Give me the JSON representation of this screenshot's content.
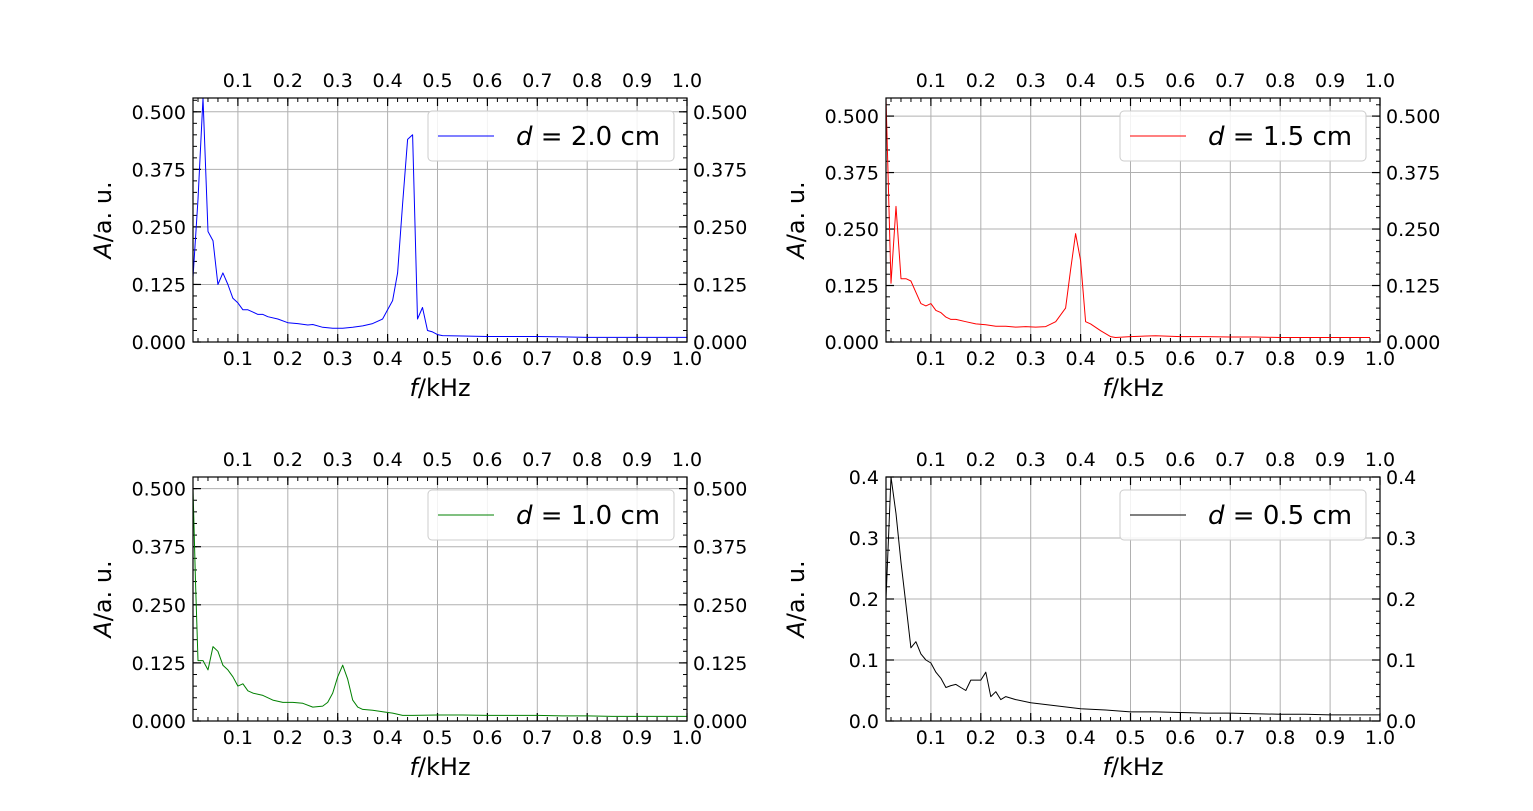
{
  "figure": {
    "background": "#ffffff"
  },
  "chart_data": [
    {
      "type": "line",
      "legend": {
        "label": "d = 2.0 cm",
        "math_var": "d",
        "math_rest": " = 2.0 cm",
        "placement": "top-right"
      },
      "xlabel": {
        "var": "f",
        "unit": "/kHz"
      },
      "ylabel": {
        "var": "A",
        "unit": "/a. u."
      },
      "xlim": [
        0.01,
        1.0
      ],
      "ylim": [
        0,
        0.53
      ],
      "xticks": [
        0.1,
        0.2,
        0.3,
        0.4,
        0.5,
        0.6,
        0.7,
        0.8,
        0.9,
        1.0
      ],
      "xtick_labels": [
        "0.1",
        "0.2",
        "0.3",
        "0.4",
        "0.5",
        "0.6",
        "0.7",
        "0.8",
        "0.9",
        "1.0"
      ],
      "yticks": [
        0,
        0.125,
        0.25,
        0.375,
        0.5
      ],
      "ytick_labels": [
        "0.000",
        "0.125",
        "0.250",
        "0.375",
        "0.500"
      ],
      "grid": true,
      "series": [
        {
          "color": "#0000ff",
          "x": [
            0.01,
            0.02,
            0.03,
            0.04,
            0.05,
            0.06,
            0.07,
            0.08,
            0.09,
            0.1,
            0.11,
            0.12,
            0.13,
            0.14,
            0.15,
            0.16,
            0.18,
            0.2,
            0.22,
            0.24,
            0.25,
            0.27,
            0.29,
            0.31,
            0.33,
            0.35,
            0.37,
            0.39,
            0.4,
            0.41,
            0.42,
            0.43,
            0.44,
            0.45,
            0.46,
            0.47,
            0.48,
            0.49,
            0.5,
            0.51,
            0.55,
            0.6,
            0.65,
            0.7,
            0.75,
            0.8,
            0.85,
            0.9,
            0.95,
            1.0
          ],
          "y": [
            0.14,
            0.31,
            0.53,
            0.24,
            0.22,
            0.125,
            0.15,
            0.125,
            0.095,
            0.085,
            0.07,
            0.07,
            0.065,
            0.06,
            0.06,
            0.055,
            0.05,
            0.042,
            0.04,
            0.037,
            0.038,
            0.032,
            0.03,
            0.03,
            0.032,
            0.035,
            0.04,
            0.05,
            0.07,
            0.09,
            0.15,
            0.3,
            0.44,
            0.45,
            0.05,
            0.075,
            0.025,
            0.022,
            0.016,
            0.014,
            0.013,
            0.012,
            0.012,
            0.012,
            0.011,
            0.01,
            0.01,
            0.01,
            0.01,
            0.01
          ]
        }
      ]
    },
    {
      "type": "line",
      "legend": {
        "label": "d = 1.5 cm",
        "math_var": "d",
        "math_rest": " = 1.5 cm",
        "placement": "top-right"
      },
      "xlabel": {
        "var": "f",
        "unit": "/kHz"
      },
      "ylabel": {
        "var": "A",
        "unit": "/a. u."
      },
      "xlim": [
        0.01,
        1.0
      ],
      "ylim": [
        0,
        0.54
      ],
      "xticks": [
        0.1,
        0.2,
        0.3,
        0.4,
        0.5,
        0.6,
        0.7,
        0.8,
        0.9,
        1.0
      ],
      "xtick_labels": [
        "0.1",
        "0.2",
        "0.3",
        "0.4",
        "0.5",
        "0.6",
        "0.7",
        "0.8",
        "0.9",
        "1.0"
      ],
      "yticks": [
        0,
        0.125,
        0.25,
        0.375,
        0.5
      ],
      "ytick_labels": [
        "0.000",
        "0.125",
        "0.250",
        "0.375",
        "0.500"
      ],
      "grid": true,
      "series": [
        {
          "color": "#ff0000",
          "x": [
            0.01,
            0.02,
            0.03,
            0.04,
            0.05,
            0.06,
            0.07,
            0.08,
            0.09,
            0.1,
            0.11,
            0.12,
            0.13,
            0.14,
            0.15,
            0.17,
            0.19,
            0.21,
            0.23,
            0.25,
            0.27,
            0.29,
            0.31,
            0.33,
            0.35,
            0.36,
            0.37,
            0.38,
            0.39,
            0.4,
            0.41,
            0.42,
            0.44,
            0.46,
            0.47,
            0.5,
            0.55,
            0.6,
            0.65,
            0.7,
            0.75,
            0.8,
            0.85,
            0.9,
            0.95,
            0.98
          ],
          "y": [
            0.54,
            0.13,
            0.3,
            0.14,
            0.14,
            0.135,
            0.11,
            0.085,
            0.08,
            0.085,
            0.07,
            0.065,
            0.055,
            0.05,
            0.05,
            0.045,
            0.04,
            0.038,
            0.035,
            0.035,
            0.033,
            0.034,
            0.033,
            0.034,
            0.045,
            0.06,
            0.075,
            0.16,
            0.24,
            0.18,
            0.045,
            0.04,
            0.025,
            0.012,
            0.01,
            0.012,
            0.014,
            0.012,
            0.012,
            0.011,
            0.011,
            0.01,
            0.01,
            0.01,
            0.01,
            0.01
          ]
        }
      ]
    },
    {
      "type": "line",
      "legend": {
        "label": "d = 1.0 cm",
        "math_var": "d",
        "math_rest": " = 1.0 cm",
        "placement": "top-right"
      },
      "xlabel": {
        "var": "f",
        "unit": "/kHz"
      },
      "ylabel": {
        "var": "A",
        "unit": "/a. u."
      },
      "xlim": [
        0.01,
        1.0
      ],
      "ylim": [
        0,
        0.525
      ],
      "xticks": [
        0.1,
        0.2,
        0.3,
        0.4,
        0.5,
        0.6,
        0.7,
        0.8,
        0.9,
        1.0
      ],
      "xtick_labels": [
        "0.1",
        "0.2",
        "0.3",
        "0.4",
        "0.5",
        "0.6",
        "0.7",
        "0.8",
        "0.9",
        "1.0"
      ],
      "yticks": [
        0,
        0.125,
        0.25,
        0.375,
        0.5
      ],
      "ytick_labels": [
        "0.000",
        "0.125",
        "0.250",
        "0.375",
        "0.500"
      ],
      "grid": true,
      "series": [
        {
          "color": "#008000",
          "x": [
            0.01,
            0.015,
            0.02,
            0.03,
            0.04,
            0.05,
            0.06,
            0.07,
            0.08,
            0.09,
            0.1,
            0.11,
            0.12,
            0.13,
            0.15,
            0.17,
            0.19,
            0.21,
            0.23,
            0.25,
            0.27,
            0.28,
            0.29,
            0.3,
            0.31,
            0.32,
            0.33,
            0.34,
            0.35,
            0.37,
            0.39,
            0.41,
            0.43,
            0.45,
            0.5,
            0.55,
            0.6,
            0.65,
            0.7,
            0.75,
            0.8,
            0.85,
            0.9,
            0.95,
            1.0
          ],
          "y": [
            0.5,
            0.3,
            0.13,
            0.13,
            0.11,
            0.16,
            0.15,
            0.12,
            0.11,
            0.095,
            0.075,
            0.08,
            0.065,
            0.06,
            0.055,
            0.045,
            0.04,
            0.04,
            0.038,
            0.03,
            0.032,
            0.04,
            0.06,
            0.095,
            0.12,
            0.09,
            0.045,
            0.03,
            0.025,
            0.023,
            0.02,
            0.017,
            0.012,
            0.012,
            0.013,
            0.013,
            0.012,
            0.012,
            0.012,
            0.011,
            0.011,
            0.01,
            0.01,
            0.01,
            0.01
          ]
        }
      ]
    },
    {
      "type": "line",
      "legend": {
        "label": "d = 0.5 cm",
        "math_var": "d",
        "math_rest": " = 0.5 cm",
        "placement": "top-right"
      },
      "xlabel": {
        "var": "f",
        "unit": "/kHz"
      },
      "ylabel": {
        "var": "A",
        "unit": "/a. u."
      },
      "xlim": [
        0.01,
        1.0
      ],
      "ylim": [
        0,
        0.4
      ],
      "xticks": [
        0.1,
        0.2,
        0.3,
        0.4,
        0.5,
        0.6,
        0.7,
        0.8,
        0.9,
        1.0
      ],
      "xtick_labels": [
        "0.1",
        "0.2",
        "0.3",
        "0.4",
        "0.5",
        "0.6",
        "0.7",
        "0.8",
        "0.9",
        "1.0"
      ],
      "yticks": [
        0,
        0.1,
        0.2,
        0.3,
        0.4
      ],
      "ytick_labels": [
        "0.0",
        "0.1",
        "0.2",
        "0.3",
        "0.4"
      ],
      "grid": true,
      "series": [
        {
          "color": "#000000",
          "x": [
            0.01,
            0.02,
            0.03,
            0.04,
            0.05,
            0.06,
            0.07,
            0.08,
            0.09,
            0.1,
            0.11,
            0.12,
            0.13,
            0.14,
            0.15,
            0.16,
            0.17,
            0.18,
            0.19,
            0.2,
            0.21,
            0.22,
            0.23,
            0.24,
            0.25,
            0.27,
            0.3,
            0.35,
            0.4,
            0.45,
            0.5,
            0.55,
            0.6,
            0.65,
            0.7,
            0.75,
            0.8,
            0.85,
            0.9,
            0.95,
            1.0
          ],
          "y": [
            0.2,
            0.4,
            0.34,
            0.26,
            0.19,
            0.12,
            0.13,
            0.11,
            0.1,
            0.095,
            0.08,
            0.07,
            0.055,
            0.058,
            0.06,
            0.055,
            0.05,
            0.067,
            0.067,
            0.067,
            0.08,
            0.04,
            0.048,
            0.035,
            0.04,
            0.035,
            0.03,
            0.025,
            0.02,
            0.018,
            0.015,
            0.015,
            0.014,
            0.013,
            0.013,
            0.012,
            0.011,
            0.011,
            0.01,
            0.01,
            0.01
          ]
        }
      ]
    }
  ]
}
